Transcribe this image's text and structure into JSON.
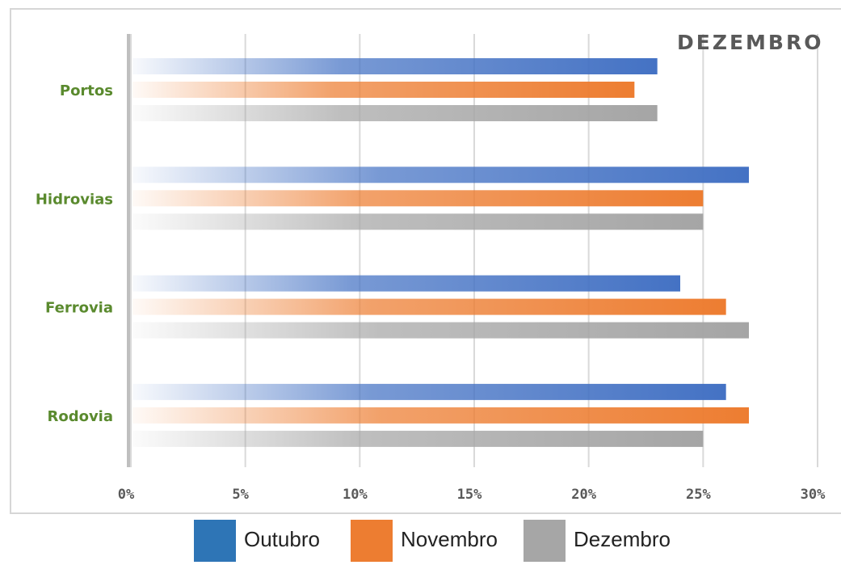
{
  "chart_data": {
    "type": "bar",
    "orientation": "horizontal",
    "title": "DEZEMBRO",
    "categories": [
      "Portos",
      "Hidrovias",
      "Ferrovia",
      "Rodovia"
    ],
    "series": [
      {
        "name": "Outubro",
        "color": "#4472c4",
        "values": [
          23,
          27,
          24,
          26
        ]
      },
      {
        "name": "Novembro",
        "color": "#ed7d31",
        "values": [
          22,
          25,
          26,
          27
        ]
      },
      {
        "name": "Dezembro",
        "color": "#a5a5a5",
        "values": [
          23,
          25,
          27,
          25
        ]
      }
    ],
    "x_ticks": [
      "0%",
      "5%",
      "10%",
      "15%",
      "20%",
      "25%",
      "30%"
    ],
    "xlim": [
      0,
      30
    ],
    "grid": true,
    "legend_position": "bottom",
    "label_color": "#5a8a2e"
  }
}
